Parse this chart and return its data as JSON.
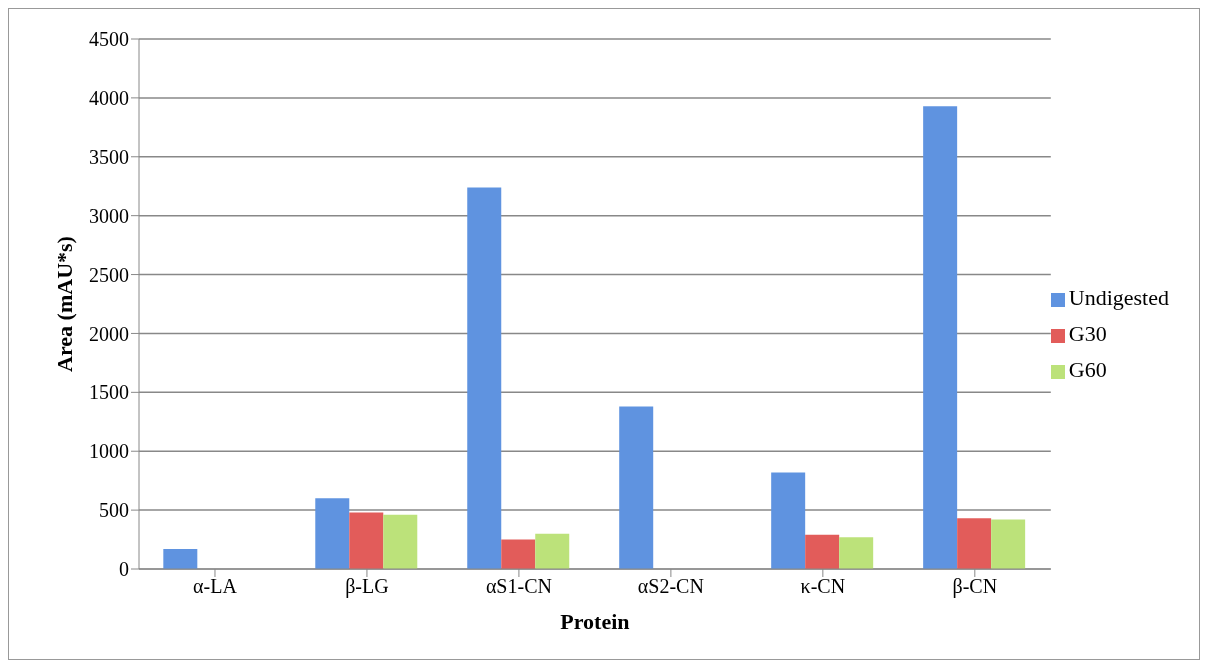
{
  "chart_data": {
    "type": "bar",
    "xlabel": "Protein",
    "ylabel": "Area (mAU*s)",
    "categories": [
      "α-LA",
      "β-LG",
      "αS1-CN",
      "αS2-CN",
      "κ-CN",
      "β-CN"
    ],
    "series": [
      {
        "name": "Undigested",
        "color": "#5f93e0",
        "values": [
          170,
          600,
          3240,
          1380,
          820,
          3930
        ]
      },
      {
        "name": "G30",
        "color": "#e25c5a",
        "values": [
          null,
          480,
          250,
          null,
          290,
          430
        ]
      },
      {
        "name": "G60",
        "color": "#bce27a",
        "values": [
          null,
          460,
          300,
          null,
          270,
          420
        ]
      }
    ],
    "ylim": [
      0,
      4500
    ],
    "yticks": [
      0,
      500,
      1000,
      1500,
      2000,
      2500,
      3000,
      3500,
      4000,
      4500
    ],
    "grid": "y",
    "legend": "right"
  }
}
